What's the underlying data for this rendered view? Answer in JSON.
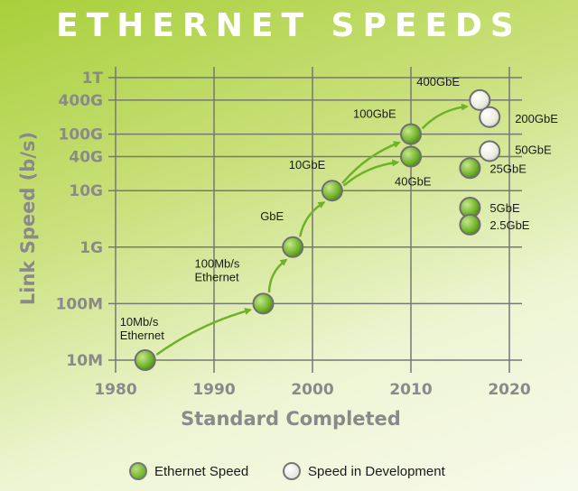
{
  "chart_data": {
    "type": "scatter",
    "title": "ETHERNET SPEEDS",
    "xlabel": "Standard Completed",
    "ylabel": "Link Speed (b/s)",
    "x_ticks": [
      1980,
      1990,
      2000,
      2010,
      2020
    ],
    "xlim": [
      1980,
      2020
    ],
    "y_scale": "log",
    "y_ticks": [
      {
        "label": "10M",
        "value": 10000000
      },
      {
        "label": "100M",
        "value": 100000000
      },
      {
        "label": "1G",
        "value": 1000000000
      },
      {
        "label": "10G",
        "value": 10000000000
      },
      {
        "label": "40G",
        "value": 40000000000
      },
      {
        "label": "100G",
        "value": 100000000000
      },
      {
        "label": "400G",
        "value": 400000000000
      },
      {
        "label": "1T",
        "value": 1000000000000
      }
    ],
    "grid": true,
    "legend_position": "bottom",
    "series": [
      {
        "name": "Ethernet Speed",
        "color": "#6fb229",
        "points": [
          {
            "label": "10Mb/s\nEthernet",
            "x": 1983,
            "y": 10000000
          },
          {
            "label": "100Mb/s\nEthernet",
            "x": 1995,
            "y": 100000000
          },
          {
            "label": "GbE",
            "x": 1998,
            "y": 1000000000
          },
          {
            "label": "10GbE",
            "x": 2002,
            "y": 10000000000
          },
          {
            "label": "40GbE",
            "x": 2010,
            "y": 40000000000
          },
          {
            "label": "100GbE",
            "x": 2010,
            "y": 100000000000
          },
          {
            "label": "25GbE",
            "x": 2016,
            "y": 25000000000
          },
          {
            "label": "5GbE",
            "x": 2016,
            "y": 5000000000
          },
          {
            "label": "2.5GbE",
            "x": 2016,
            "y": 2500000000
          }
        ]
      },
      {
        "name": "Speed in Development",
        "color": "#f2f2e8",
        "points": [
          {
            "label": "400GbE",
            "x": 2017,
            "y": 400000000000
          },
          {
            "label": "200GbE",
            "x": 2018,
            "y": 200000000000
          },
          {
            "label": "50GbE",
            "x": 2018,
            "y": 50000000000
          }
        ]
      }
    ],
    "arrows": [
      {
        "from": "10Mb/s\nEthernet",
        "to": "100Mb/s\nEthernet"
      },
      {
        "from": "100Mb/s\nEthernet",
        "to": "GbE"
      },
      {
        "from": "GbE",
        "to": "10GbE"
      },
      {
        "from": "10GbE",
        "to": "40GbE"
      },
      {
        "from": "10GbE",
        "to": "100GbE"
      },
      {
        "from": "100GbE",
        "to": "400GbE"
      }
    ]
  }
}
